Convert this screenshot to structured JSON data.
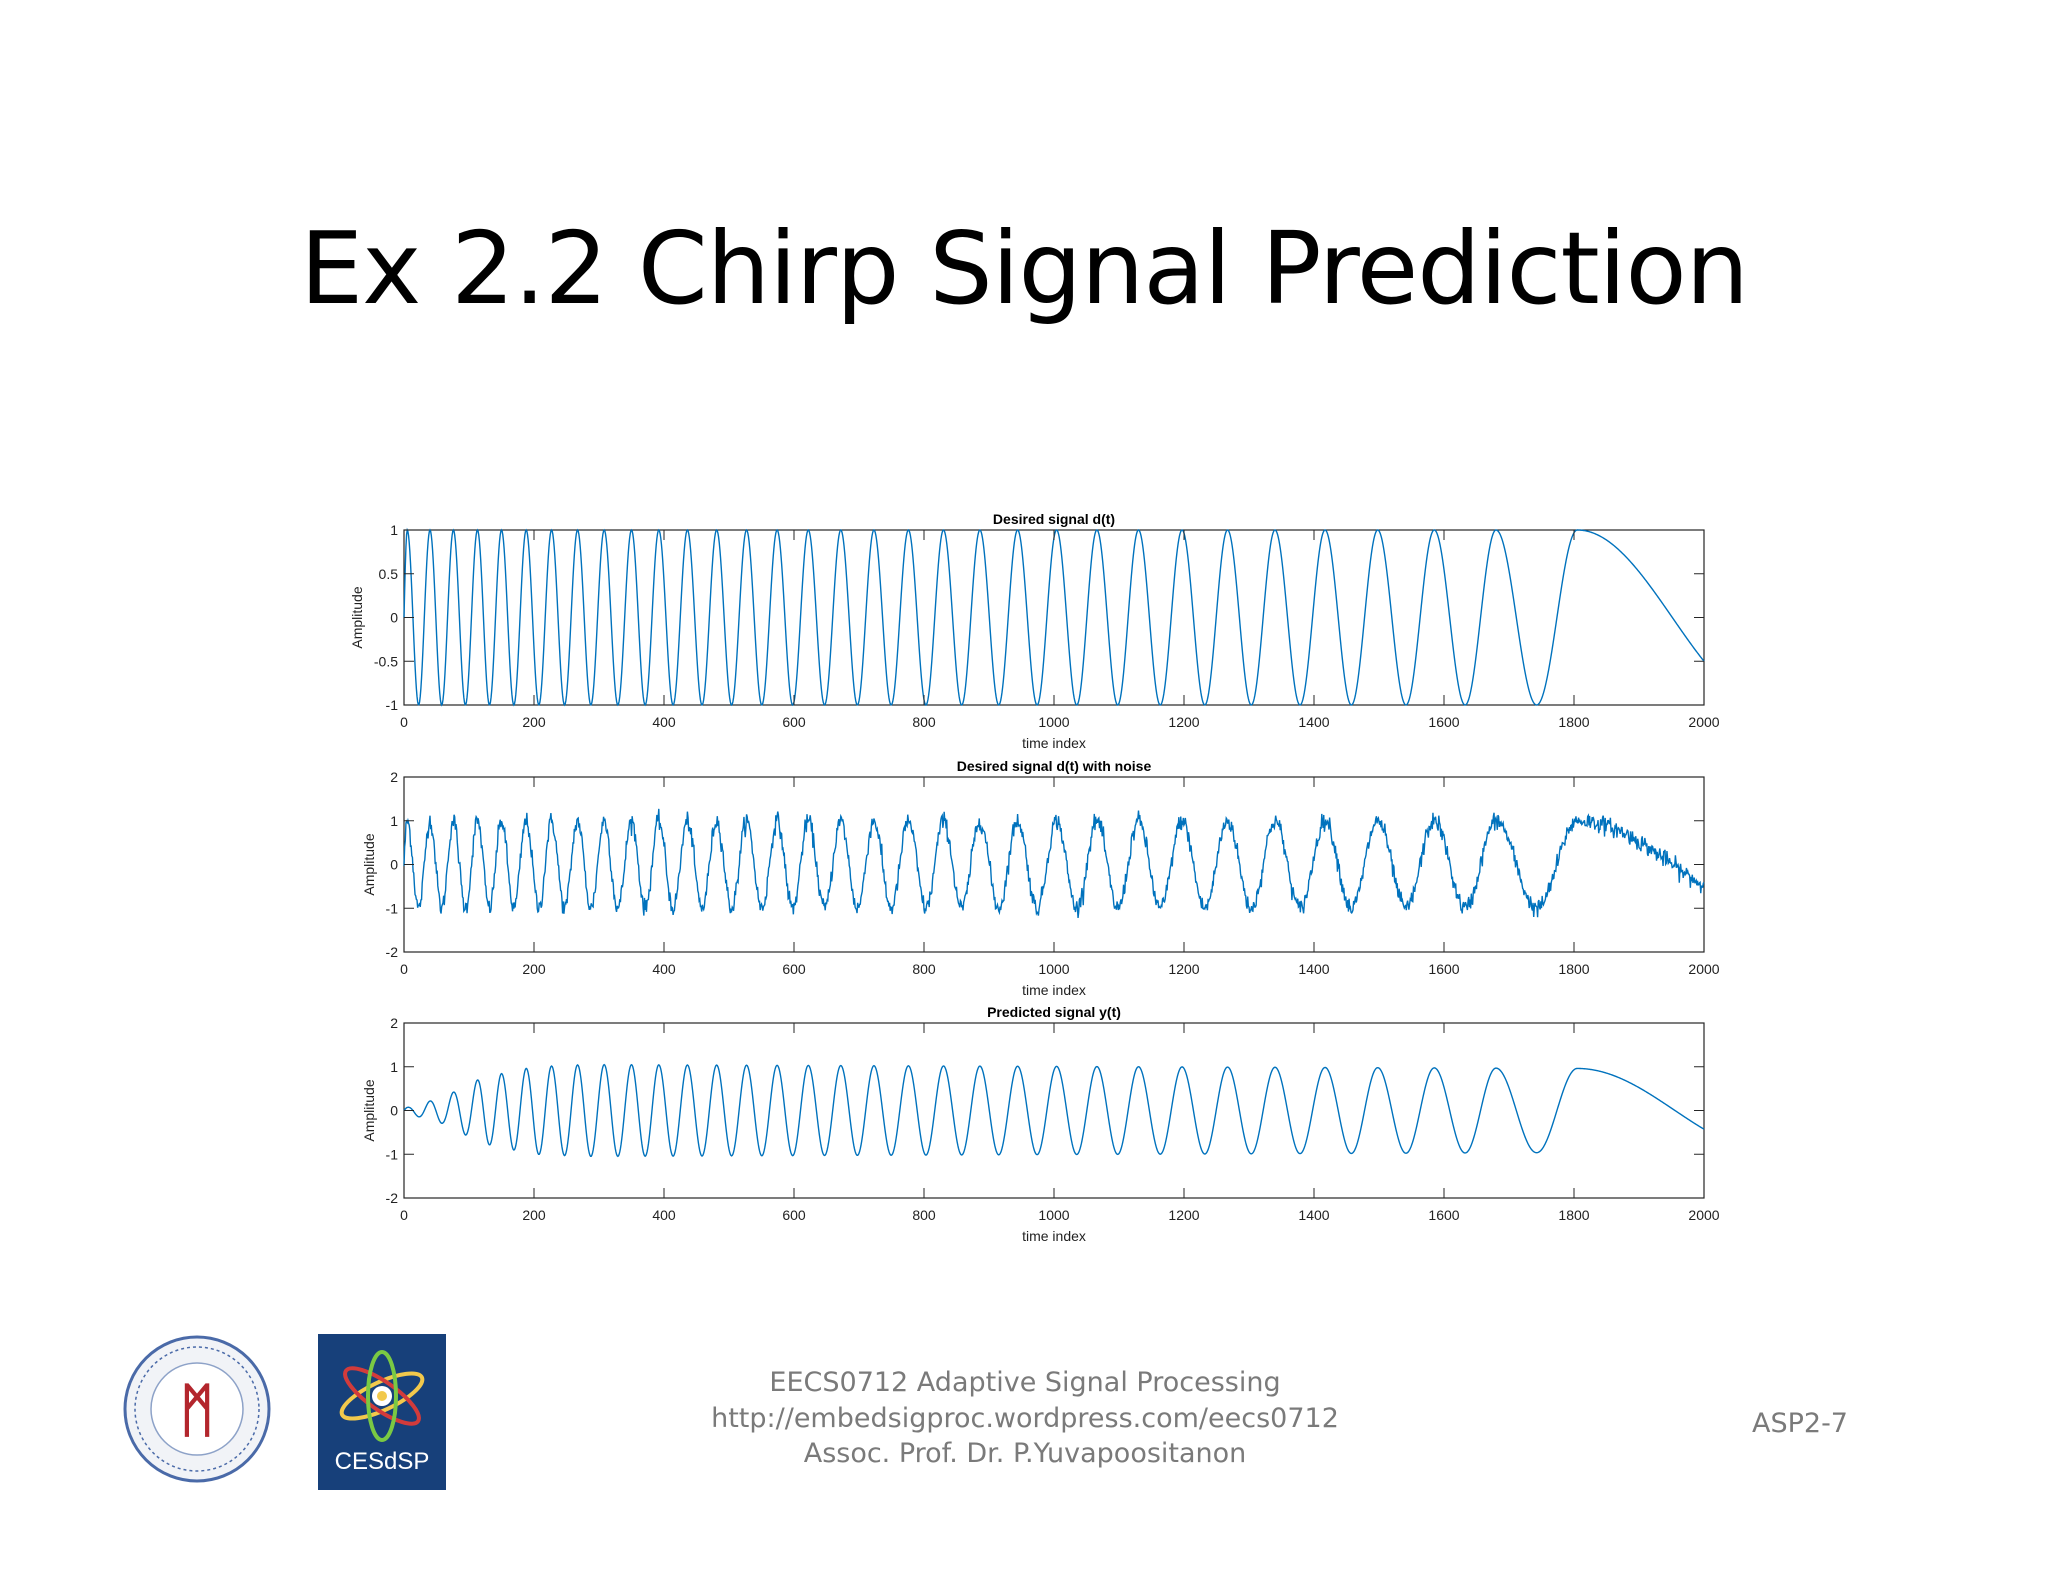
{
  "slide": {
    "title": "Ex 2.2 Chirp Signal Prediction",
    "footer_line1": "EECS0712 Adaptive Signal Processing",
    "footer_line2": "http://embedsigproc.wordpress.com/eecs0712",
    "footer_line3": "Assoc. Prof. Dr. P.Yuvapoositanon",
    "slide_number": "ASP2-7",
    "logo_right_text": "CESdSP",
    "logo_left_text": "ᛗ",
    "line_color": "#0072bd"
  },
  "chart_data": [
    {
      "type": "line",
      "title": "Desired signal d(t)",
      "xlabel": "time index",
      "ylabel": "Amplitude",
      "xlim": [
        0,
        2000
      ],
      "ylim": [
        -1,
        1
      ],
      "xticks": [
        0,
        200,
        400,
        600,
        800,
        1000,
        1200,
        1400,
        1600,
        1800,
        2000
      ],
      "yticks": [
        -1,
        -0.5,
        0,
        0.5,
        1
      ],
      "ytick_labels": [
        "-1",
        "-0.5",
        "0",
        "0.5",
        "1"
      ],
      "grid": false,
      "series": [
        {
          "signal": "chirp",
          "amplitude": 1,
          "start_phase": -1.5708,
          "peak_x": [
            5,
            40,
            76,
            113,
            150,
            188,
            227,
            267,
            308,
            350,
            392,
            436,
            481,
            527,
            574,
            622,
            672,
            723,
            776,
            830,
            886,
            944,
            1004,
            1066,
            1130,
            1197,
            1267,
            1340,
            1417,
            1498,
            1585,
            1680,
            1805
          ],
          "end": {
            "x": 2000,
            "y": -0.5
          },
          "noise": 0
        }
      ]
    },
    {
      "type": "line",
      "title": "Desired signal d(t) with noise",
      "xlabel": "time index",
      "ylabel": "Amplitude",
      "xlim": [
        0,
        2000
      ],
      "ylim": [
        -2,
        2
      ],
      "xticks": [
        0,
        200,
        400,
        600,
        800,
        1000,
        1200,
        1400,
        1600,
        1800,
        2000
      ],
      "yticks": [
        -2,
        -1,
        0,
        1,
        2
      ],
      "ytick_labels": [
        "-2",
        "-1",
        "0",
        "1",
        "2"
      ],
      "grid": false,
      "series": [
        {
          "signal": "chirp",
          "amplitude": 1,
          "start_phase": -1.5708,
          "peak_x": [
            5,
            40,
            76,
            113,
            150,
            188,
            227,
            267,
            308,
            350,
            392,
            436,
            481,
            527,
            574,
            622,
            672,
            723,
            776,
            830,
            886,
            944,
            1004,
            1066,
            1130,
            1197,
            1267,
            1340,
            1417,
            1498,
            1585,
            1680,
            1805
          ],
          "end": {
            "x": 2000,
            "y": -0.5
          },
          "noise": 0.1
        }
      ]
    },
    {
      "type": "line",
      "title": "Predicted signal y(t)",
      "xlabel": "time index",
      "ylabel": "Amplitude",
      "xlim": [
        0,
        2000
      ],
      "ylim": [
        -2,
        2
      ],
      "xticks": [
        0,
        200,
        400,
        600,
        800,
        1000,
        1200,
        1400,
        1600,
        1800,
        2000
      ],
      "yticks": [
        -2,
        -1,
        0,
        1,
        2
      ],
      "ytick_labels": [
        "-2",
        "-1",
        "0",
        "1",
        "2"
      ],
      "grid": false,
      "series": [
        {
          "signal": "chirp",
          "amplitude": 1,
          "amplitude_ramp": [
            [
              0,
              0.05
            ],
            [
              60,
              0.3
            ],
            [
              120,
              0.75
            ],
            [
              200,
              1.0
            ],
            [
              280,
              1.05
            ],
            [
              2000,
              0.95
            ]
          ],
          "start_phase": -1.5708,
          "peak_x": [
            5,
            40,
            76,
            113,
            150,
            188,
            227,
            267,
            308,
            350,
            392,
            436,
            481,
            527,
            574,
            622,
            672,
            723,
            776,
            830,
            886,
            944,
            1004,
            1066,
            1130,
            1197,
            1267,
            1340,
            1417,
            1498,
            1585,
            1680,
            1805
          ],
          "end": {
            "x": 2000,
            "y": -0.45
          },
          "noise": 0
        }
      ]
    }
  ]
}
